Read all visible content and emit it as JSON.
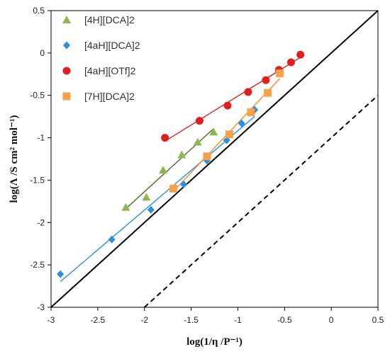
{
  "chart_data": {
    "type": "scatter",
    "title": "",
    "xlabel": "log(1/η /P⁻¹)",
    "ylabel": "log(Λ /S cm² mol⁻¹)",
    "xlim": [
      -3,
      0.5
    ],
    "ylim": [
      -3,
      0.5
    ],
    "xticks": [
      "-3",
      "-2.5",
      "-2",
      "-1.5",
      "-1",
      "-0.5",
      "0",
      "0.5"
    ],
    "yticks": [
      "-3",
      "-2.5",
      "-2",
      "-1.5",
      "-1",
      "-0.5",
      "0",
      "0.5"
    ],
    "grid": false,
    "legend_position": "top-left",
    "series": [
      {
        "name": "[4H][DCA]2",
        "marker": "triangle",
        "color": "#8DB850",
        "line_color": "#4E6B2A",
        "points": [
          [
            -2.2,
            -1.82
          ],
          [
            -1.98,
            -1.7
          ],
          [
            -1.8,
            -1.38
          ],
          [
            -1.6,
            -1.2
          ],
          [
            -1.43,
            -1.05
          ],
          [
            -1.26,
            -0.93
          ]
        ]
      },
      {
        "name": "[4aH][DCA]2",
        "marker": "diamond",
        "color": "#2E8FDB",
        "line_color": "#2E8FDB",
        "points": [
          [
            -2.9,
            -2.61
          ],
          [
            -2.35,
            -2.2
          ],
          [
            -1.93,
            -1.85
          ],
          [
            -1.58,
            -1.55
          ],
          [
            -1.33,
            -1.27
          ],
          [
            -1.12,
            -1.03
          ],
          [
            -0.96,
            -0.83
          ],
          [
            -0.82,
            -0.67
          ]
        ]
      },
      {
        "name": "[4aH][OTf]2",
        "marker": "circle",
        "color": "#E02020",
        "line_color": "#E02020",
        "points": [
          [
            -1.78,
            -1.0
          ],
          [
            -1.41,
            -0.8
          ],
          [
            -1.11,
            -0.62
          ],
          [
            -0.89,
            -0.46
          ],
          [
            -0.7,
            -0.32
          ],
          [
            -0.56,
            -0.2
          ],
          [
            -0.43,
            -0.11
          ],
          [
            -0.33,
            -0.02
          ]
        ]
      },
      {
        "name": "[7H][DCA]2",
        "marker": "square",
        "color": "#F7A24A",
        "line_color": "#F28C28",
        "points": [
          [
            -1.69,
            -1.6
          ],
          [
            -1.33,
            -1.22
          ],
          [
            -1.09,
            -0.96
          ],
          [
            -0.86,
            -0.7
          ],
          [
            -0.68,
            -0.47
          ],
          [
            -0.55,
            -0.24
          ]
        ]
      }
    ],
    "reference_lines": [
      {
        "style": "solid",
        "color": "#000000",
        "from": [
          -3,
          -3
        ],
        "to": [
          0.5,
          0.5
        ]
      },
      {
        "style": "dashed",
        "color": "#000000",
        "from": [
          -2,
          -3
        ],
        "to": [
          0.5,
          -0.5
        ]
      }
    ]
  }
}
